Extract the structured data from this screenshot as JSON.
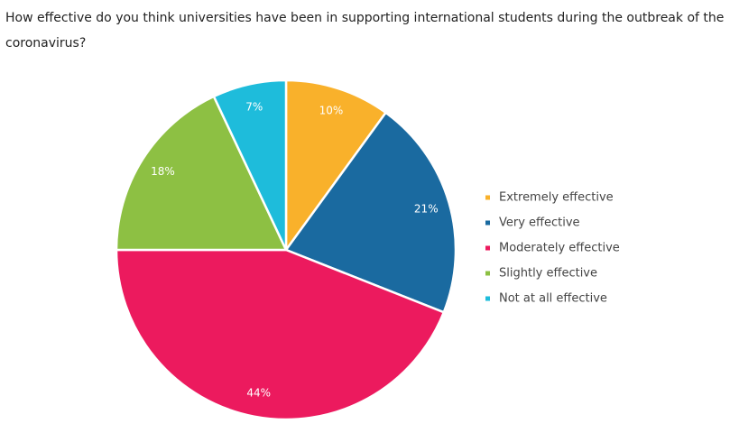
{
  "chart_data": {
    "type": "pie",
    "title": "How effective do you think universities have been in supporting international students during the outbreak of the coronavirus?",
    "categories": [
      "Extremely effective",
      "Very effective",
      "Moderately effective",
      "Slightly effective",
      "Not at all effective"
    ],
    "values": [
      10,
      21,
      44,
      18,
      7
    ],
    "value_labels": [
      "10%",
      "21%",
      "44%",
      "18%",
      "7%"
    ],
    "colors": [
      "#f9b12b",
      "#1a6aa0",
      "#ec1a5e",
      "#8dc043",
      "#1ebcdb"
    ],
    "legend": "right"
  }
}
